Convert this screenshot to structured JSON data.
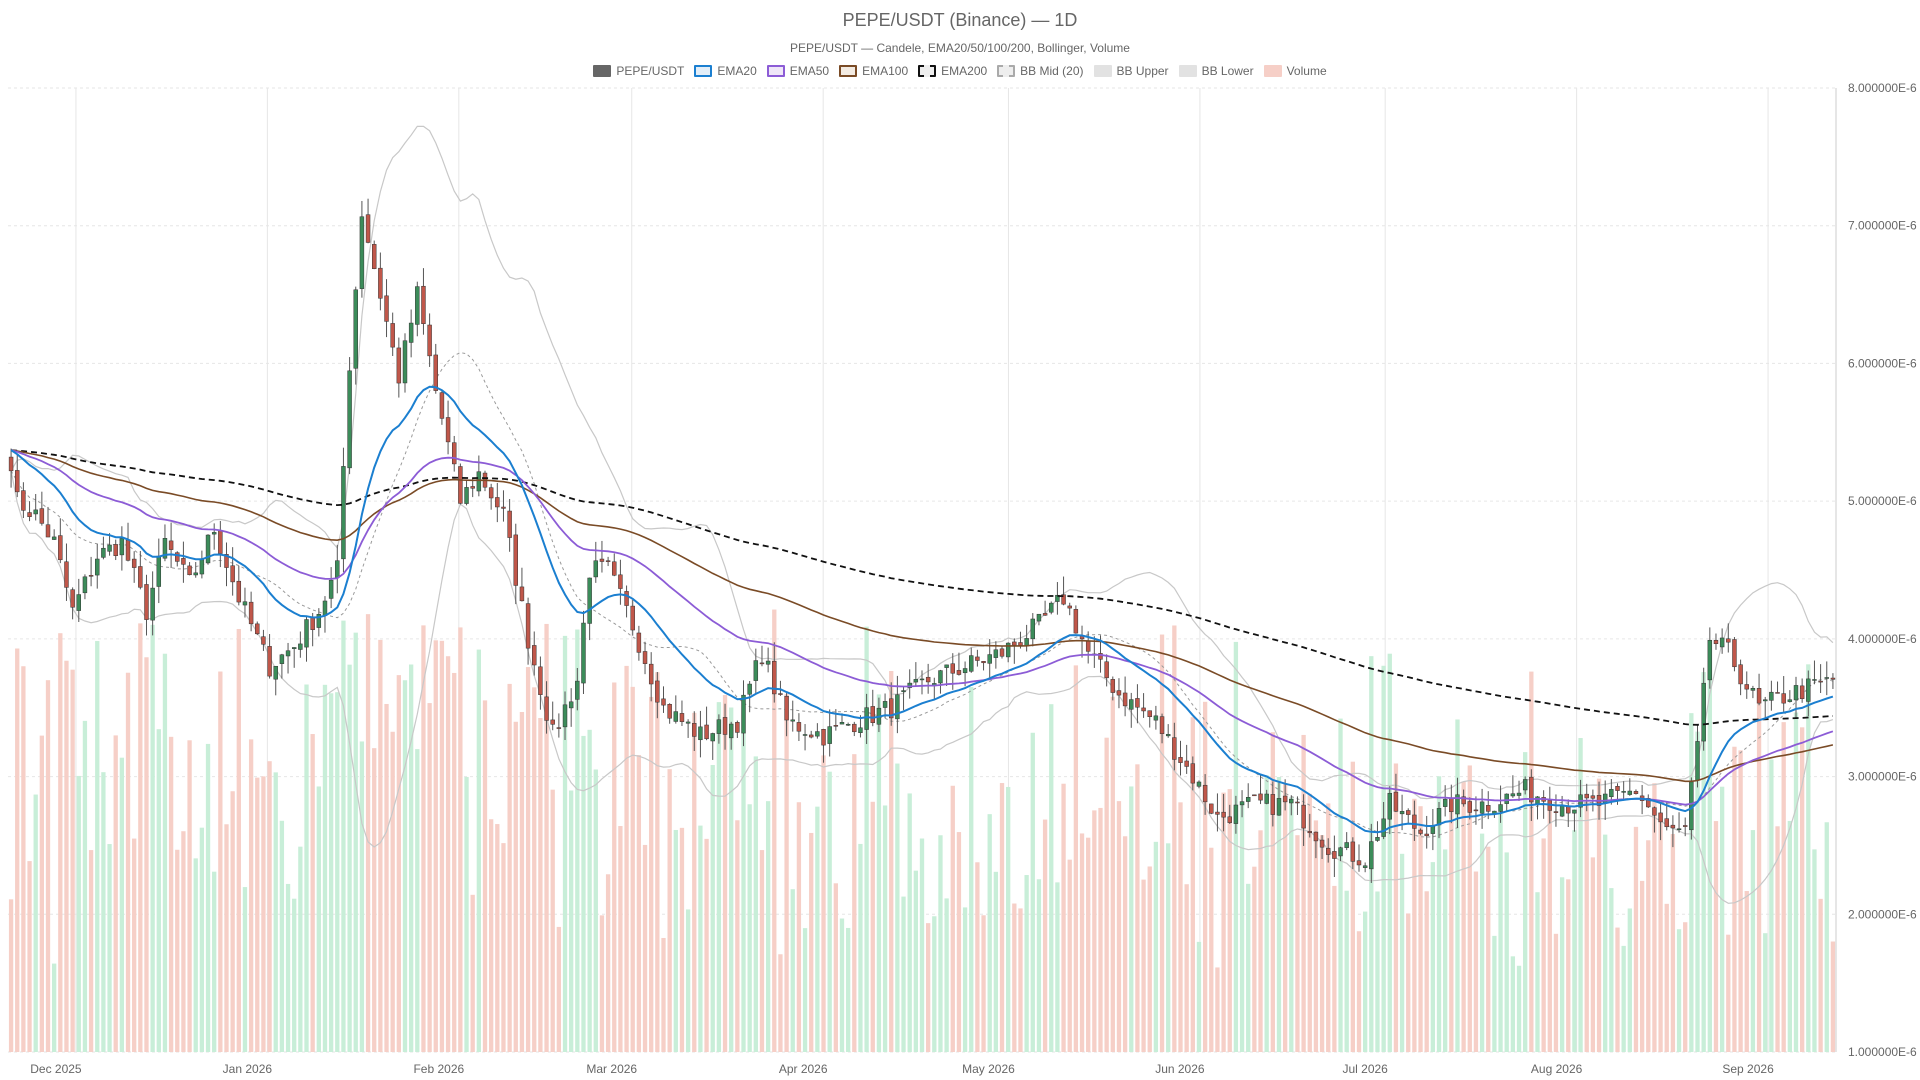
{
  "chart_data": {
    "type": "candlestick",
    "title": "PEPE/USDT (Binance) — 1D",
    "subtitle": "PEPE/USDT — Candele, EMA20/50/100/200, Bollinger, Volume",
    "legend": [
      {
        "label": "PEPE/USDT",
        "kind": "candles",
        "fill": "#666666",
        "stroke": "#666666",
        "dashed": false
      },
      {
        "label": "EMA20",
        "kind": "line",
        "fill": "#e3eef8",
        "stroke": "#1b7fd0",
        "dashed": false
      },
      {
        "label": "EMA50",
        "kind": "line",
        "fill": "#efe6f8",
        "stroke": "#8c5cd6",
        "dashed": false
      },
      {
        "label": "EMA100",
        "kind": "line",
        "fill": "#f3ebe2",
        "stroke": "#7a4b26",
        "dashed": false
      },
      {
        "label": "EMA200",
        "kind": "line",
        "fill": "#eeeeee",
        "stroke": "#111111",
        "dashed": true
      },
      {
        "label": "BB Mid (20)",
        "kind": "line",
        "fill": "#eeeeee",
        "stroke": "#aaaaaa",
        "dashed": true
      },
      {
        "label": "BB Upper",
        "kind": "line",
        "fill": "#e2e2e2",
        "stroke": "#e2e2e2",
        "dashed": false
      },
      {
        "label": "BB Lower",
        "kind": "line",
        "fill": "#e2e2e2",
        "stroke": "#e2e2e2",
        "dashed": false
      },
      {
        "label": "Volume",
        "kind": "bars",
        "fill": "#f6cfc7",
        "stroke": "#f6cfc7",
        "dashed": false
      }
    ],
    "colors": {
      "up": "#3c8c5a",
      "down": "#c0574a",
      "volume_up": "#c8eed8",
      "volume_down": "#f6cfc7",
      "grid": "#e6e6e6"
    },
    "y_axis": {
      "min": 1e-06,
      "max": 8e-06,
      "position": "right",
      "ticks": [
        "1.000000E-6",
        "2.000000E-6",
        "3.000000E-6",
        "4.000000E-6",
        "5.000000E-6",
        "6.000000E-6",
        "7.000000E-6",
        "8.000000E-6"
      ]
    },
    "x_axis": {
      "type": "date",
      "start": "2025-11-20",
      "end": "2026-09-12",
      "ticks": [
        {
          "date": "2025-12-01",
          "label": "Dec 2025"
        },
        {
          "date": "2026-01-01",
          "label": "Jan 2026"
        },
        {
          "date": "2026-02-01",
          "label": "Feb 2026"
        },
        {
          "date": "2026-03-01",
          "label": "Mar 2026"
        },
        {
          "date": "2026-04-01",
          "label": "Apr 2026"
        },
        {
          "date": "2026-05-01",
          "label": "May 2026"
        },
        {
          "date": "2026-06-01",
          "label": "Jun 2026"
        },
        {
          "date": "2026-07-01",
          "label": "Jul 2026"
        },
        {
          "date": "2026-08-01",
          "label": "Aug 2026"
        },
        {
          "date": "2026-09-01",
          "label": "Sep 2026"
        }
      ]
    },
    "close_anchors": [
      [
        "2025-11-20",
        5.3
      ],
      [
        "2025-11-21",
        5.0
      ],
      [
        "2025-11-24",
        4.9
      ],
      [
        "2025-11-27",
        4.7
      ],
      [
        "2025-11-30",
        4.2
      ],
      [
        "2025-12-04",
        4.6
      ],
      [
        "2025-12-08",
        4.7
      ],
      [
        "2025-12-12",
        4.2
      ],
      [
        "2025-12-15",
        4.7
      ],
      [
        "2025-12-19",
        4.4
      ],
      [
        "2025-12-23",
        4.8
      ],
      [
        "2025-12-27",
        4.3
      ],
      [
        "2026-01-01",
        3.8
      ],
      [
        "2026-01-05",
        3.95
      ],
      [
        "2026-01-09",
        4.2
      ],
      [
        "2026-01-12",
        4.5
      ],
      [
        "2026-01-14",
        6.0
      ],
      [
        "2026-01-16",
        7.1
      ],
      [
        "2026-01-19",
        6.5
      ],
      [
        "2026-01-22",
        5.9
      ],
      [
        "2026-01-25",
        6.5
      ],
      [
        "2026-01-28",
        5.8
      ],
      [
        "2026-02-01",
        5.0
      ],
      [
        "2026-02-04",
        5.2
      ],
      [
        "2026-02-08",
        4.9
      ],
      [
        "2026-02-12",
        4.0
      ],
      [
        "2026-02-16",
        3.3
      ],
      [
        "2026-02-20",
        3.7
      ],
      [
        "2026-02-22",
        4.5
      ],
      [
        "2026-02-25",
        4.5
      ],
      [
        "2026-03-01",
        4.1
      ],
      [
        "2026-03-06",
        3.5
      ],
      [
        "2026-03-12",
        3.3
      ],
      [
        "2026-03-18",
        3.4
      ],
      [
        "2026-03-22",
        3.9
      ],
      [
        "2026-03-26",
        3.4
      ],
      [
        "2026-04-01",
        3.3
      ],
      [
        "2026-04-06",
        3.4
      ],
      [
        "2026-04-12",
        3.5
      ],
      [
        "2026-04-18",
        3.7
      ],
      [
        "2026-04-24",
        3.8
      ],
      [
        "2026-04-30",
        3.9
      ],
      [
        "2026-05-06",
        4.1
      ],
      [
        "2026-05-10",
        4.3
      ],
      [
        "2026-05-14",
        3.9
      ],
      [
        "2026-05-19",
        3.6
      ],
      [
        "2026-05-25",
        3.4
      ],
      [
        "2026-05-31",
        3.0
      ],
      [
        "2026-06-04",
        2.7
      ],
      [
        "2026-06-10",
        2.8
      ],
      [
        "2026-06-16",
        2.8
      ],
      [
        "2026-06-22",
        2.5
      ],
      [
        "2026-06-28",
        2.4
      ],
      [
        "2026-07-02",
        2.8
      ],
      [
        "2026-07-07",
        2.6
      ],
      [
        "2026-07-12",
        2.8
      ],
      [
        "2026-07-18",
        2.8
      ],
      [
        "2026-07-24",
        2.9
      ],
      [
        "2026-07-30",
        2.8
      ],
      [
        "2026-08-05",
        2.8
      ],
      [
        "2026-08-11",
        2.9
      ],
      [
        "2026-08-16",
        2.6
      ],
      [
        "2026-08-19",
        2.6
      ],
      [
        "2026-08-21",
        3.2
      ],
      [
        "2026-08-23",
        4.0
      ],
      [
        "2026-08-26",
        3.9
      ],
      [
        "2026-08-31",
        3.5
      ],
      [
        "2026-09-05",
        3.6
      ],
      [
        "2026-09-12",
        3.7
      ]
    ],
    "bollinger_period": 20,
    "ema_periods": [
      20,
      50,
      100,
      200
    ]
  }
}
